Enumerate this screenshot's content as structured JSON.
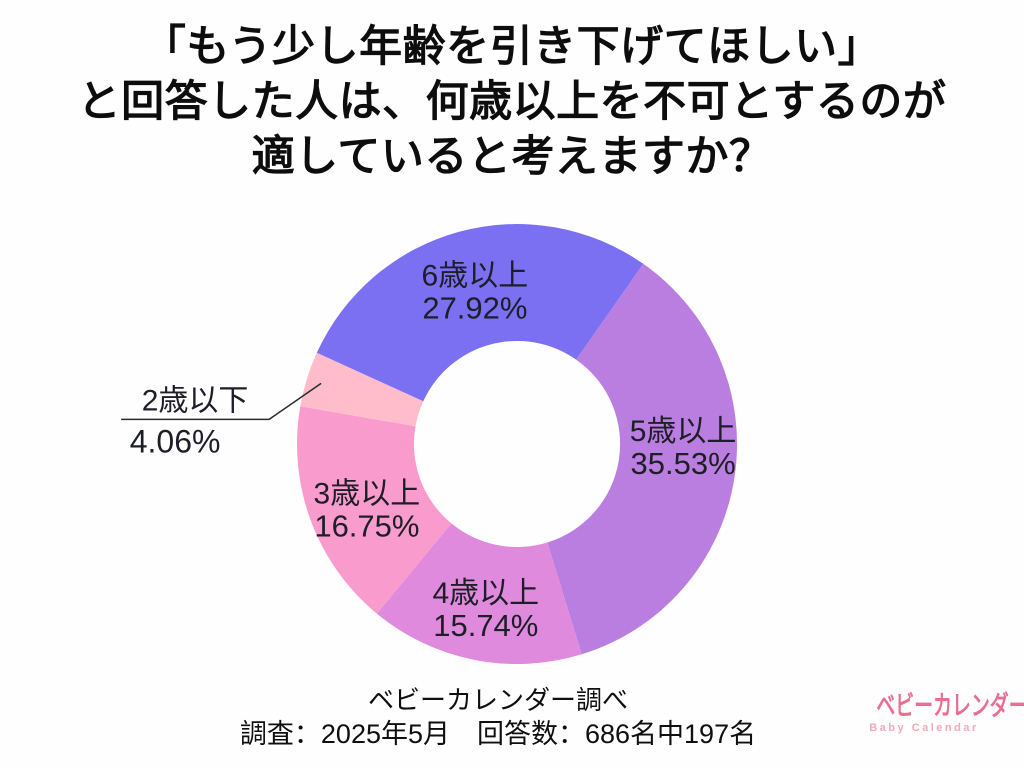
{
  "title": {
    "line1": "「もう少し年齢を引き下げてほしい」",
    "line2": "と回答した人は、何歳以上を不可とするのが",
    "line3": "適していると考えますか？"
  },
  "chart_data": {
    "type": "pie",
    "subtype": "donut",
    "title": "「もう少し年齢を引き下げてほしい」と回答した人は、何歳以上を不可とするのが適していると考えますか？",
    "unit": "%",
    "legend": "none",
    "labels_inside": true,
    "start_angle_deg": 35,
    "text_color": "#1e1e28",
    "segments": [
      {
        "label": "5歳以上",
        "value": 35.53,
        "display": "35.53%",
        "color": "#ba7ee0",
        "label_nudge": [
          8,
          -24
        ]
      },
      {
        "label": "4歳以上",
        "value": 15.74,
        "display": "15.74%",
        "color": "#e08ade",
        "label_nudge": [
          0,
          6
        ]
      },
      {
        "label": "3歳以上",
        "value": 16.75,
        "display": "16.75%",
        "color": "#f99bcd",
        "label_nudge": [
          0,
          8
        ]
      },
      {
        "label": "2歳以下",
        "value": 4.06,
        "display": "4.06%",
        "color": "#ffbdcb",
        "label_outside": true
      },
      {
        "label": "6歳以上",
        "value": 27.92,
        "display": "27.92%",
        "color": "#7b70f2",
        "label_nudge": [
          0,
          0
        ]
      }
    ]
  },
  "footer": {
    "source": "ベビーカレンダー調べ",
    "survey": "調査：2025年5月　回答数：686名中197名"
  },
  "logo": {
    "name": "ベビーカレンダー",
    "subtitle": "Baby Calendar",
    "color": "#e96e92",
    "subtitle_color": "#f2a9bc"
  }
}
